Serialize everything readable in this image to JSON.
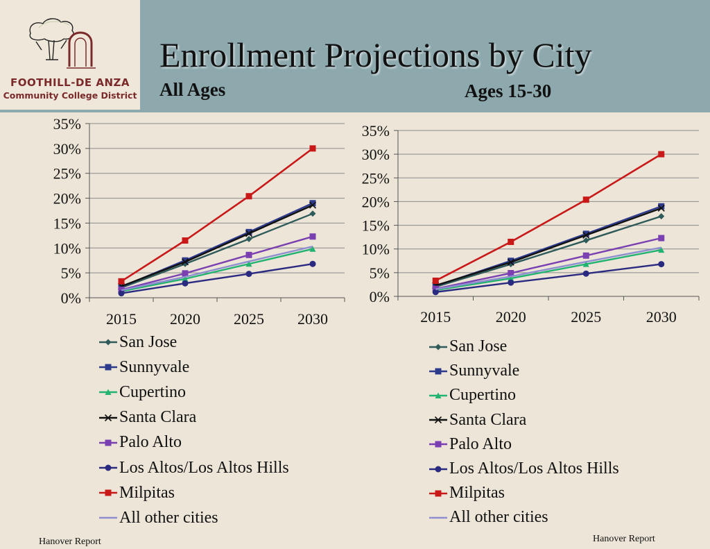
{
  "header": {
    "title": "Enrollment Projections by City",
    "subtitle_left": "All Ages",
    "subtitle_right": "Ages 15-30",
    "org_name": "FOOTHILL-DE ANZA",
    "org_sub": "Community College District"
  },
  "footer": {
    "left": "Hanover Report",
    "right": "Hanover Report"
  },
  "chart_data": [
    {
      "type": "line",
      "title": "All Ages",
      "categories": [
        "2015",
        "2020",
        "2025",
        "2030"
      ],
      "ylim": [
        0,
        35
      ],
      "yticks": [
        "0%",
        "5%",
        "10%",
        "15%",
        "20%",
        "25%",
        "30%",
        "35%"
      ],
      "series": [
        {
          "name": "San Jose",
          "marker": "diamond",
          "color": "#2e5a5a",
          "values": [
            2.0,
            6.8,
            11.8,
            16.9
          ]
        },
        {
          "name": "Sunnyvale",
          "marker": "square",
          "color": "#2e3a8c",
          "values": [
            2.2,
            7.5,
            13.2,
            19.0
          ]
        },
        {
          "name": "Cupertino",
          "marker": "triangle",
          "color": "#21b36f",
          "values": [
            1.3,
            3.8,
            6.8,
            9.8
          ]
        },
        {
          "name": "Santa Clara",
          "marker": "x",
          "color": "#111111",
          "values": [
            2.3,
            7.2,
            12.9,
            18.6
          ]
        },
        {
          "name": "Palo Alto",
          "marker": "square",
          "color": "#7a3fb0",
          "values": [
            1.6,
            4.9,
            8.6,
            12.3
          ]
        },
        {
          "name": "Los Altos/Los Altos Hills",
          "marker": "circle",
          "color": "#2a2a80",
          "values": [
            0.9,
            2.9,
            4.8,
            6.8
          ]
        },
        {
          "name": "Milpitas",
          "marker": "square",
          "color": "#c81818",
          "values": [
            3.3,
            11.5,
            20.4,
            30.0
          ]
        },
        {
          "name": "All other cities",
          "marker": "none",
          "color": "#8e8ed0",
          "values": [
            1.5,
            4.2,
            7.3,
            10.3
          ]
        }
      ]
    },
    {
      "type": "line",
      "title": "Ages 15-30",
      "categories": [
        "2015",
        "2020",
        "2025",
        "2030"
      ],
      "ylim": [
        0,
        35
      ],
      "yticks": [
        "0%",
        "5%",
        "10%",
        "15%",
        "20%",
        "25%",
        "30%",
        "35%"
      ],
      "series": [
        {
          "name": "San Jose",
          "marker": "diamond",
          "color": "#2e5a5a",
          "values": [
            2.0,
            6.8,
            11.8,
            16.9
          ]
        },
        {
          "name": "Sunnyvale",
          "marker": "square",
          "color": "#2e3a8c",
          "values": [
            2.2,
            7.5,
            13.2,
            19.0
          ]
        },
        {
          "name": "Cupertino",
          "marker": "triangle",
          "color": "#21b36f",
          "values": [
            1.3,
            3.8,
            6.8,
            9.8
          ]
        },
        {
          "name": "Santa Clara",
          "marker": "x",
          "color": "#111111",
          "values": [
            2.3,
            7.2,
            12.9,
            18.6
          ]
        },
        {
          "name": "Palo Alto",
          "marker": "square",
          "color": "#7a3fb0",
          "values": [
            1.6,
            4.9,
            8.6,
            12.3
          ]
        },
        {
          "name": "Los Altos/Los Altos Hills",
          "marker": "circle",
          "color": "#2a2a80",
          "values": [
            0.9,
            2.9,
            4.8,
            6.8
          ]
        },
        {
          "name": "Milpitas",
          "marker": "square",
          "color": "#c81818",
          "values": [
            3.3,
            11.5,
            20.4,
            30.0
          ]
        },
        {
          "name": "All other cities",
          "marker": "none",
          "color": "#8e8ed0",
          "values": [
            1.5,
            4.2,
            7.3,
            10.3
          ]
        }
      ]
    }
  ]
}
